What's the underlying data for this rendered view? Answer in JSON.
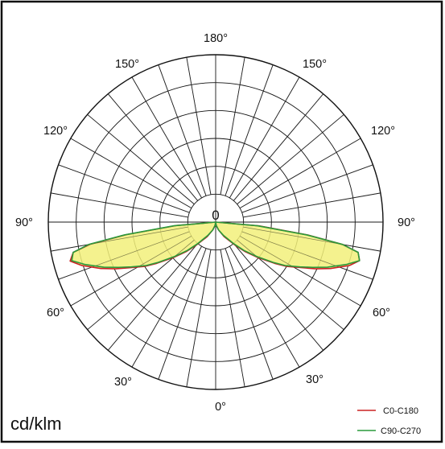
{
  "chart_data": {
    "type": "polar",
    "unit_label": "cd/klm",
    "center_label": "0",
    "angle_labels": {
      "bottom": "0°",
      "left_30": "30°",
      "right_30": "30°",
      "left_60": "60°",
      "right_60": "60°",
      "left_90": "90°",
      "right_90": "90°",
      "left_120": "120°",
      "right_120": "120°",
      "left_150": "150°",
      "right_150": "150°",
      "top": "180°"
    },
    "radial_ring_count": 6,
    "angular_spoke_step_deg": 10,
    "series": [
      {
        "name": "C0-C180",
        "color": "#cc2222",
        "fill": "#f2f07a",
        "points_deg_r": [
          [
            -90,
            0
          ],
          [
            -85,
            0.24
          ],
          [
            -82,
            0.54
          ],
          [
            -80,
            0.76
          ],
          [
            -78,
            0.87
          ],
          [
            -75,
            0.9
          ],
          [
            -72,
            0.84
          ],
          [
            -68,
            0.74
          ],
          [
            -65,
            0.66
          ],
          [
            -62,
            0.58
          ],
          [
            -58,
            0.5
          ],
          [
            -55,
            0.43
          ],
          [
            -50,
            0.33
          ],
          [
            -45,
            0.25
          ],
          [
            -40,
            0.18
          ],
          [
            -30,
            0.1
          ],
          [
            -20,
            0.05
          ],
          [
            -10,
            0.02
          ],
          [
            0,
            0
          ],
          [
            10,
            0.02
          ],
          [
            20,
            0.05
          ],
          [
            30,
            0.1
          ],
          [
            40,
            0.18
          ],
          [
            45,
            0.25
          ],
          [
            50,
            0.33
          ],
          [
            55,
            0.43
          ],
          [
            58,
            0.5
          ],
          [
            62,
            0.58
          ],
          [
            65,
            0.66
          ],
          [
            68,
            0.74
          ],
          [
            72,
            0.84
          ],
          [
            75,
            0.89
          ],
          [
            78,
            0.87
          ],
          [
            80,
            0.77
          ],
          [
            82,
            0.56
          ],
          [
            85,
            0.26
          ],
          [
            90,
            0
          ]
        ]
      },
      {
        "name": "C90-C270",
        "color": "#2a9a3a",
        "fill": "#f2f07a",
        "points_deg_r": [
          [
            -90,
            0
          ],
          [
            -85,
            0.25
          ],
          [
            -82,
            0.55
          ],
          [
            -80,
            0.77
          ],
          [
            -78,
            0.87
          ],
          [
            -75,
            0.89
          ],
          [
            -72,
            0.82
          ],
          [
            -68,
            0.72
          ],
          [
            -65,
            0.64
          ],
          [
            -62,
            0.57
          ],
          [
            -58,
            0.49
          ],
          [
            -55,
            0.42
          ],
          [
            -50,
            0.32
          ],
          [
            -45,
            0.24
          ],
          [
            -40,
            0.17
          ],
          [
            -30,
            0.09
          ],
          [
            -20,
            0.05
          ],
          [
            -10,
            0.02
          ],
          [
            0,
            0
          ],
          [
            10,
            0.02
          ],
          [
            20,
            0.05
          ],
          [
            30,
            0.09
          ],
          [
            40,
            0.17
          ],
          [
            45,
            0.24
          ],
          [
            50,
            0.32
          ],
          [
            55,
            0.42
          ],
          [
            58,
            0.49
          ],
          [
            62,
            0.57
          ],
          [
            65,
            0.64
          ],
          [
            68,
            0.72
          ],
          [
            72,
            0.82
          ],
          [
            75,
            0.89
          ],
          [
            78,
            0.87
          ],
          [
            80,
            0.77
          ],
          [
            82,
            0.55
          ],
          [
            85,
            0.25
          ],
          [
            90,
            0
          ]
        ]
      }
    ],
    "legend": [
      {
        "name": "C0-C180",
        "color": "#cc2222"
      },
      {
        "name": "C90-C270",
        "color": "#2a9a3a"
      }
    ]
  }
}
